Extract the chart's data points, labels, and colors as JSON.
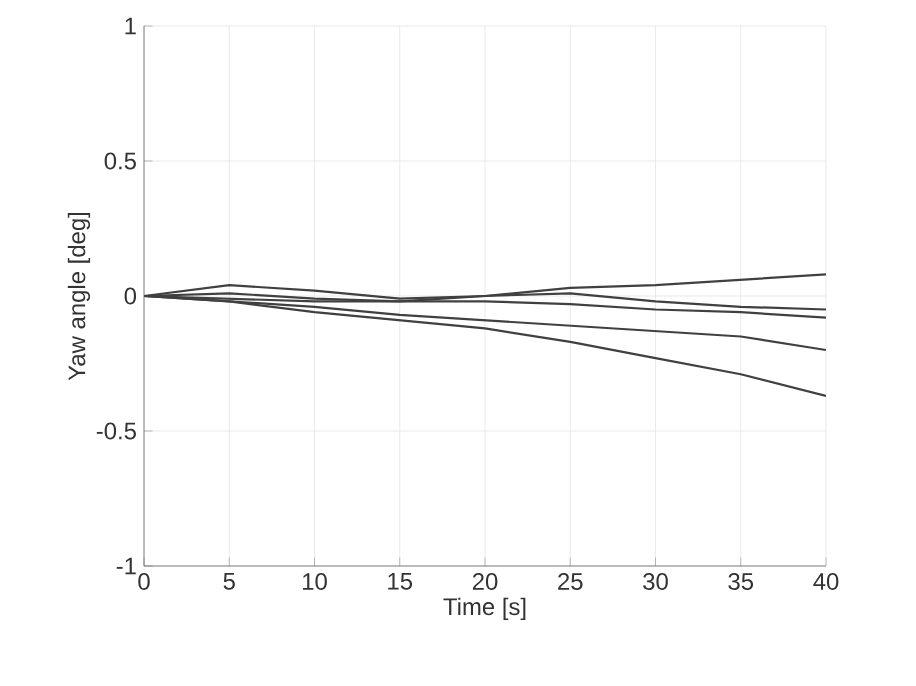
{
  "chart_data": {
    "type": "line",
    "xlabel": "Time [s]",
    "ylabel": "Yaw angle [deg]",
    "x": [
      0,
      5,
      10,
      15,
      20,
      25,
      30,
      35,
      40
    ],
    "series": [
      {
        "color": "#404040",
        "values": [
          0,
          0.01,
          -0.01,
          -0.02,
          0.0,
          0.03,
          0.04,
          0.06,
          0.08
        ]
      },
      {
        "color": "#404040",
        "values": [
          0,
          0.04,
          0.02,
          -0.01,
          0.0,
          0.01,
          -0.02,
          -0.04,
          -0.05
        ]
      },
      {
        "color": "#404040",
        "values": [
          0,
          -0.01,
          -0.02,
          -0.02,
          -0.02,
          -0.03,
          -0.05,
          -0.06,
          -0.08
        ]
      },
      {
        "color": "#404040",
        "values": [
          0,
          -0.02,
          -0.04,
          -0.07,
          -0.09,
          -0.11,
          -0.13,
          -0.15,
          -0.2
        ]
      },
      {
        "color": "#404040",
        "values": [
          0,
          -0.02,
          -0.06,
          -0.09,
          -0.12,
          -0.17,
          -0.23,
          -0.29,
          -0.37
        ]
      }
    ],
    "xlim": [
      0,
      40
    ],
    "ylim": [
      -1,
      1
    ],
    "xticks": [
      0,
      5,
      10,
      15,
      20,
      25,
      30,
      35,
      40
    ],
    "yticks": [
      -1,
      -0.5,
      0,
      0.5,
      1
    ],
    "grid": true,
    "marker": "none",
    "line_style": "solid"
  }
}
